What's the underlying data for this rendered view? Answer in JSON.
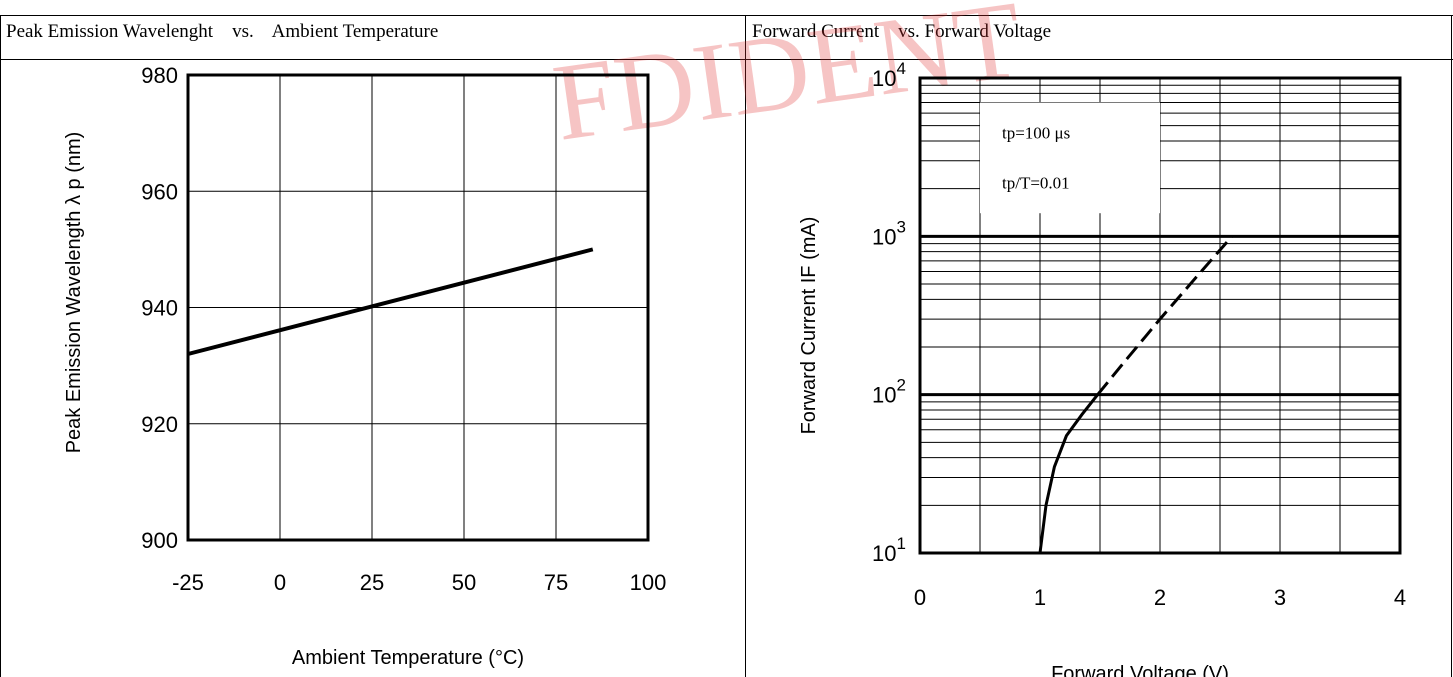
{
  "headers": {
    "left": "Peak Emission Wavelenght    vs.    Ambient Temperature",
    "right": "Forward Current    vs. Forward Voltage"
  },
  "colors": {
    "line": "#000000",
    "watermark": "#e03030"
  },
  "chart_data": [
    {
      "type": "line",
      "xlabel": "Ambient Temperature (°C)",
      "ylabel": "Peak Emission Wavelength  λ p (nm)",
      "xlim": [
        -25,
        100
      ],
      "ylim": [
        900,
        980
      ],
      "x_ticks": [
        -25,
        0,
        25,
        50,
        75,
        100
      ],
      "y_ticks": [
        900,
        920,
        940,
        960,
        980
      ],
      "grid": true,
      "series": [
        {
          "x": [
            -25,
            85
          ],
          "y": [
            932,
            950
          ],
          "style": "solid"
        }
      ]
    },
    {
      "type": "line",
      "yscale": "log",
      "xlabel": "Forward Voltage (V)",
      "ylabel": "Forward Current IF (mA)",
      "xlim": [
        0,
        4
      ],
      "ylim": [
        10,
        10000
      ],
      "x_ticks": [
        0,
        1,
        2,
        3,
        4
      ],
      "y_ticks": [
        {
          "base": "10",
          "exp": "1"
        },
        {
          "base": "10",
          "exp": "2"
        },
        {
          "base": "10",
          "exp": "3"
        },
        {
          "base": "10",
          "exp": "4"
        }
      ],
      "grid": true,
      "annotations": [
        "tp=100 μs",
        "tp/T=0.01"
      ],
      "series": [
        {
          "style": "solid",
          "x": [
            1.0,
            1.05,
            1.12,
            1.22,
            1.35,
            1.48
          ],
          "y": [
            10,
            20,
            35,
            55,
            75,
            100
          ]
        },
        {
          "style": "dashed",
          "x": [
            1.48,
            1.7,
            2.0,
            2.3,
            2.6
          ],
          "y": [
            100,
            160,
            300,
            550,
            1000
          ]
        }
      ]
    }
  ]
}
